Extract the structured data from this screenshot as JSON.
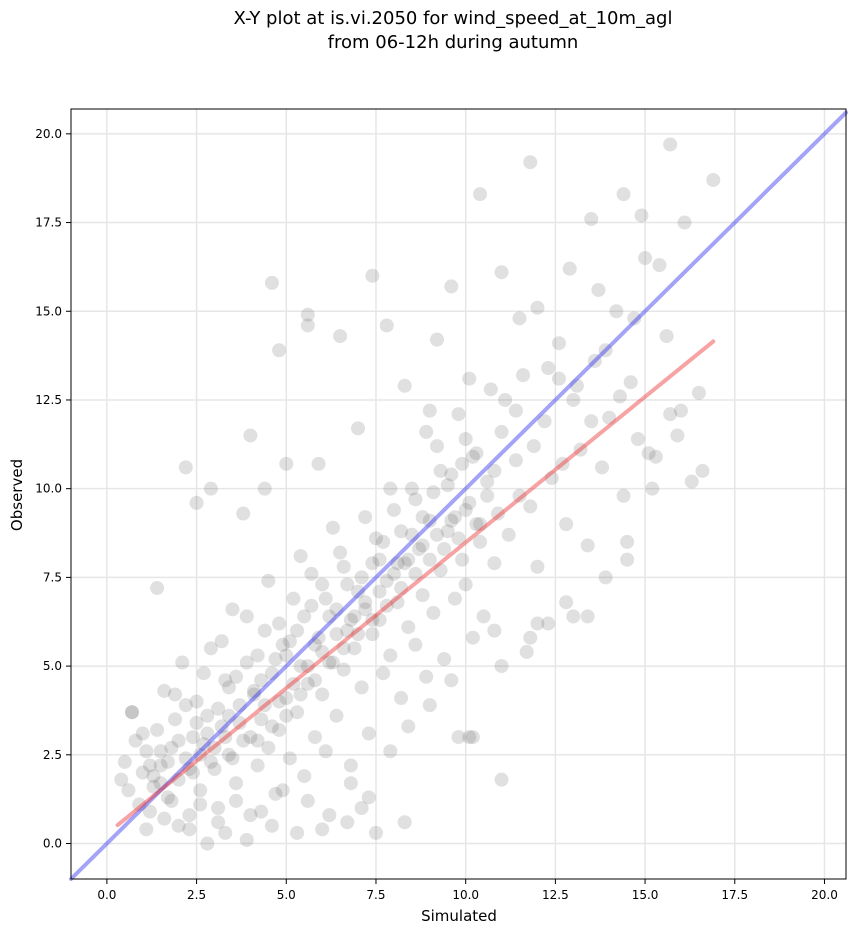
{
  "chart_data": {
    "type": "scatter",
    "title_line1": "X-Y plot at is.vi.2050 for wind_speed_at_10m_agl",
    "title_line2": "from 06-12h during autumn",
    "xlabel": "Simulated",
    "ylabel": "Observed",
    "xlim": [
      -1.0,
      20.6
    ],
    "ylim": [
      -1.0,
      20.7
    ],
    "x_ticks": [
      0.0,
      2.5,
      5.0,
      7.5,
      10.0,
      12.5,
      15.0,
      17.5,
      20.0
    ],
    "x_tick_labels": [
      "0.0",
      "2.5",
      "5.0",
      "7.5",
      "10.0",
      "12.5",
      "15.0",
      "17.5",
      "20.0"
    ],
    "y_ticks": [
      0.0,
      2.5,
      5.0,
      7.5,
      10.0,
      12.5,
      15.0,
      17.5,
      20.0
    ],
    "y_tick_labels": [
      "0.0",
      "2.5",
      "5.0",
      "7.5",
      "10.0",
      "12.5",
      "15.0",
      "17.5",
      "20.0"
    ],
    "grid": true,
    "point_color": "#555555",
    "identity_line": {
      "x": [
        -1.0,
        20.6
      ],
      "y": [
        -1.0,
        20.6
      ],
      "color": "#3333ee"
    },
    "fit_line": {
      "x": [
        0.3,
        16.9
      ],
      "y": [
        0.52,
        14.15
      ],
      "color": "#ee3333"
    },
    "points": [
      [
        0.4,
        1.8
      ],
      [
        0.5,
        2.3
      ],
      [
        0.6,
        1.5
      ],
      [
        0.7,
        3.7
      ],
      [
        0.8,
        2.9
      ],
      [
        0.9,
        1.1
      ],
      [
        1.0,
        2.0
      ],
      [
        1.1,
        2.6
      ],
      [
        1.2,
        0.9
      ],
      [
        1.3,
        1.6
      ],
      [
        1.4,
        3.2
      ],
      [
        1.5,
        2.2
      ],
      [
        1.6,
        4.3
      ],
      [
        1.7,
        1.3
      ],
      [
        1.8,
        2.7
      ],
      [
        1.9,
        3.5
      ],
      [
        2.0,
        1.8
      ],
      [
        2.1,
        5.1
      ],
      [
        2.2,
        2.4
      ],
      [
        2.3,
        0.4
      ],
      [
        2.4,
        3.0
      ],
      [
        2.5,
        4.0
      ],
      [
        2.6,
        1.5
      ],
      [
        2.7,
        2.8
      ],
      [
        2.8,
        3.6
      ],
      [
        2.9,
        5.5
      ],
      [
        3.0,
        2.1
      ],
      [
        3.1,
        1.0
      ],
      [
        3.2,
        3.3
      ],
      [
        3.3,
        4.6
      ],
      [
        3.4,
        2.5
      ],
      [
        3.5,
        6.6
      ],
      [
        3.6,
        1.7
      ],
      [
        3.7,
        3.9
      ],
      [
        3.8,
        2.9
      ],
      [
        3.9,
        5.1
      ],
      [
        4.0,
        0.8
      ],
      [
        4.1,
        4.3
      ],
      [
        4.2,
        2.2
      ],
      [
        4.3,
        3.5
      ],
      [
        4.4,
        6.0
      ],
      [
        4.5,
        2.7
      ],
      [
        4.6,
        4.8
      ],
      [
        4.7,
        1.4
      ],
      [
        4.8,
        3.2
      ],
      [
        4.9,
        5.6
      ],
      [
        5.0,
        4.1
      ],
      [
        5.1,
        2.4
      ],
      [
        5.2,
        6.9
      ],
      [
        5.3,
        3.7
      ],
      [
        5.4,
        5.0
      ],
      [
        5.5,
        1.9
      ],
      [
        5.6,
        4.5
      ],
      [
        5.7,
        7.6
      ],
      [
        5.8,
        3.0
      ],
      [
        5.9,
        5.8
      ],
      [
        6.0,
        4.2
      ],
      [
        6.1,
        2.6
      ],
      [
        6.2,
        6.4
      ],
      [
        6.3,
        5.1
      ],
      [
        6.4,
        3.6
      ],
      [
        6.5,
        8.2
      ],
      [
        6.6,
        4.9
      ],
      [
        6.7,
        6.0
      ],
      [
        6.8,
        2.2
      ],
      [
        6.9,
        5.5
      ],
      [
        7.0,
        7.1
      ],
      [
        7.1,
        4.4
      ],
      [
        7.2,
        6.6
      ],
      [
        7.3,
        3.1
      ],
      [
        7.4,
        5.9
      ],
      [
        7.5,
        8.6
      ],
      [
        7.6,
        6.3
      ],
      [
        7.7,
        4.8
      ],
      [
        7.8,
        7.4
      ],
      [
        7.9,
        5.3
      ],
      [
        8.0,
        9.4
      ],
      [
        8.1,
        6.8
      ],
      [
        8.2,
        4.1
      ],
      [
        8.3,
        7.9
      ],
      [
        8.4,
        6.1
      ],
      [
        8.5,
        10.0
      ],
      [
        8.6,
        5.6
      ],
      [
        8.7,
        8.3
      ],
      [
        8.8,
        7.0
      ],
      [
        8.9,
        4.7
      ],
      [
        9.0,
        9.1
      ],
      [
        9.1,
        6.5
      ],
      [
        9.2,
        11.2
      ],
      [
        9.3,
        7.7
      ],
      [
        9.4,
        5.2
      ],
      [
        9.5,
        8.8
      ],
      [
        9.6,
        10.4
      ],
      [
        9.7,
        6.9
      ],
      [
        9.8,
        12.1
      ],
      [
        9.9,
        8.0
      ],
      [
        10.0,
        7.3
      ],
      [
        10.1,
        9.6
      ],
      [
        10.2,
        5.8
      ],
      [
        10.3,
        11.0
      ],
      [
        10.4,
        8.5
      ],
      [
        10.5,
        6.4
      ],
      [
        10.6,
        10.2
      ],
      [
        10.7,
        12.8
      ],
      [
        10.8,
        7.9
      ],
      [
        10.9,
        9.3
      ],
      [
        11.0,
        11.6
      ],
      [
        11.2,
        8.7
      ],
      [
        11.4,
        10.8
      ],
      [
        11.6,
        13.2
      ],
      [
        11.8,
        9.5
      ],
      [
        12.0,
        7.8
      ],
      [
        12.2,
        11.9
      ],
      [
        12.4,
        10.3
      ],
      [
        12.6,
        14.1
      ],
      [
        12.8,
        9.0
      ],
      [
        13.0,
        12.5
      ],
      [
        13.2,
        11.1
      ],
      [
        13.4,
        8.4
      ],
      [
        13.6,
        13.6
      ],
      [
        13.8,
        10.6
      ],
      [
        14.0,
        12.0
      ],
      [
        14.2,
        15.0
      ],
      [
        14.4,
        9.8
      ],
      [
        14.6,
        13.0
      ],
      [
        14.8,
        11.4
      ],
      [
        15.0,
        16.5
      ],
      [
        15.3,
        10.9
      ],
      [
        15.6,
        14.3
      ],
      [
        16.0,
        12.2
      ],
      [
        1.1,
        0.4
      ],
      [
        1.6,
        0.7
      ],
      [
        2.0,
        0.5
      ],
      [
        2.6,
        1.1
      ],
      [
        3.1,
        0.6
      ],
      [
        3.6,
        1.2
      ],
      [
        4.3,
        0.9
      ],
      [
        4.9,
        1.5
      ],
      [
        5.6,
        1.2
      ],
      [
        6.2,
        0.8
      ],
      [
        6.8,
        1.7
      ],
      [
        7.3,
        1.3
      ],
      [
        7.9,
        2.6
      ],
      [
        8.4,
        3.3
      ],
      [
        9.0,
        3.9
      ],
      [
        9.6,
        4.6
      ],
      [
        10.2,
        3.0
      ],
      [
        11.0,
        5.0
      ],
      [
        11.7,
        5.4
      ],
      [
        12.3,
        6.2
      ],
      [
        12.8,
        6.8
      ],
      [
        13.4,
        6.4
      ],
      [
        13.9,
        7.5
      ],
      [
        14.5,
        8.5
      ],
      [
        15.2,
        10.0
      ],
      [
        15.9,
        11.5
      ],
      [
        16.5,
        12.7
      ],
      [
        16.9,
        18.7
      ],
      [
        15.7,
        19.7
      ],
      [
        11.8,
        19.2
      ],
      [
        10.4,
        18.3
      ],
      [
        14.4,
        18.3
      ],
      [
        14.9,
        17.7
      ],
      [
        16.1,
        17.5
      ],
      [
        13.5,
        17.6
      ],
      [
        15.4,
        16.3
      ],
      [
        12.9,
        16.2
      ],
      [
        11.0,
        16.1
      ],
      [
        9.6,
        15.7
      ],
      [
        7.4,
        16.0
      ],
      [
        4.6,
        15.8
      ],
      [
        5.6,
        14.9
      ],
      [
        5.6,
        14.6
      ],
      [
        7.8,
        14.6
      ],
      [
        9.2,
        14.2
      ],
      [
        12.0,
        15.1
      ],
      [
        11.5,
        14.8
      ],
      [
        13.7,
        15.6
      ],
      [
        2.2,
        10.6
      ],
      [
        1.4,
        7.2
      ],
      [
        2.5,
        9.6
      ],
      [
        2.9,
        10.0
      ],
      [
        3.8,
        9.3
      ],
      [
        4.0,
        11.5
      ],
      [
        4.4,
        10.0
      ],
      [
        5.0,
        10.7
      ],
      [
        5.9,
        10.7
      ],
      [
        7.0,
        11.7
      ],
      [
        4.8,
        13.9
      ],
      [
        6.5,
        14.3
      ],
      [
        8.3,
        12.9
      ],
      [
        9.0,
        12.2
      ],
      [
        11.4,
        12.2
      ],
      [
        10.1,
        13.1
      ],
      [
        12.6,
        13.1
      ],
      [
        15.1,
        11.0
      ],
      [
        16.3,
        10.2
      ],
      [
        15.7,
        12.1
      ],
      [
        16.6,
        10.5
      ],
      [
        14.5,
        8.0
      ],
      [
        13.0,
        6.4
      ],
      [
        12.0,
        6.2
      ],
      [
        11.8,
        5.8
      ],
      [
        10.8,
        6.0
      ],
      [
        10.1,
        3.0
      ],
      [
        11.0,
        1.8
      ],
      [
        9.8,
        3.0
      ],
      [
        8.3,
        0.6
      ],
      [
        7.5,
        0.3
      ],
      [
        7.1,
        1.0
      ],
      [
        6.7,
        0.6
      ],
      [
        6.0,
        0.4
      ],
      [
        5.3,
        0.3
      ],
      [
        4.6,
        0.5
      ],
      [
        3.9,
        0.1
      ],
      [
        3.3,
        0.3
      ],
      [
        2.8,
        0.0
      ],
      [
        2.3,
        0.8
      ],
      [
        1.8,
        1.2
      ],
      [
        1.3,
        1.9
      ],
      [
        0.7,
        3.7
      ],
      [
        1.0,
        3.1
      ],
      [
        1.5,
        2.6
      ],
      [
        1.9,
        4.2
      ],
      [
        2.2,
        3.9
      ],
      [
        2.7,
        4.8
      ],
      [
        3.2,
        5.7
      ],
      [
        3.4,
        4.4
      ],
      [
        3.9,
        6.4
      ],
      [
        4.2,
        5.3
      ],
      [
        4.5,
        7.4
      ],
      [
        4.8,
        6.2
      ],
      [
        5.1,
        5.7
      ],
      [
        5.4,
        8.1
      ],
      [
        5.7,
        6.7
      ],
      [
        6.0,
        7.3
      ],
      [
        6.3,
        8.9
      ],
      [
        6.6,
        7.8
      ],
      [
        6.9,
        6.4
      ],
      [
        7.2,
        9.2
      ],
      [
        7.6,
        8.0
      ],
      [
        7.9,
        10.0
      ],
      [
        8.2,
        8.8
      ],
      [
        8.6,
        9.7
      ],
      [
        8.9,
        11.6
      ],
      [
        9.3,
        10.5
      ],
      [
        9.7,
        9.2
      ],
      [
        10.0,
        11.4
      ],
      [
        10.4,
        9.0
      ],
      [
        10.8,
        10.5
      ],
      [
        11.1,
        12.5
      ],
      [
        11.5,
        9.8
      ],
      [
        11.9,
        11.2
      ],
      [
        12.3,
        13.4
      ],
      [
        12.7,
        10.7
      ],
      [
        13.1,
        12.9
      ],
      [
        13.5,
        11.9
      ],
      [
        13.9,
        13.9
      ],
      [
        14.3,
        12.6
      ],
      [
        14.7,
        14.8
      ],
      [
        2.4,
        2.0
      ],
      [
        2.6,
        2.5
      ],
      [
        2.8,
        3.1
      ],
      [
        3.0,
        2.7
      ],
      [
        3.3,
        3.0
      ],
      [
        3.5,
        2.4
      ],
      [
        3.7,
        3.4
      ],
      [
        4.0,
        3.0
      ],
      [
        4.2,
        2.9
      ],
      [
        4.4,
        3.9
      ],
      [
        4.6,
        3.3
      ],
      [
        4.8,
        4.0
      ],
      [
        5.0,
        3.6
      ],
      [
        5.2,
        4.5
      ],
      [
        5.4,
        4.2
      ],
      [
        5.6,
        5.0
      ],
      [
        5.8,
        4.6
      ],
      [
        6.0,
        5.4
      ],
      [
        6.2,
        5.1
      ],
      [
        6.4,
        5.9
      ],
      [
        6.6,
        5.5
      ],
      [
        6.8,
        6.3
      ],
      [
        7.0,
        5.9
      ],
      [
        7.2,
        6.8
      ],
      [
        7.4,
        6.3
      ],
      [
        7.6,
        7.1
      ],
      [
        7.8,
        6.7
      ],
      [
        8.0,
        7.6
      ],
      [
        8.2,
        7.2
      ],
      [
        8.4,
        8.0
      ],
      [
        8.6,
        7.6
      ],
      [
        8.8,
        8.4
      ],
      [
        9.0,
        8.0
      ],
      [
        9.2,
        8.7
      ],
      [
        9.4,
        8.3
      ],
      [
        9.6,
        9.1
      ],
      [
        9.8,
        8.6
      ],
      [
        10.0,
        9.4
      ],
      [
        10.3,
        9.0
      ],
      [
        10.6,
        9.8
      ],
      [
        1.2,
        2.2
      ],
      [
        1.5,
        1.7
      ],
      [
        1.7,
        2.3
      ],
      [
        2.0,
        2.9
      ],
      [
        2.3,
        2.1
      ],
      [
        2.5,
        3.4
      ],
      [
        2.9,
        2.3
      ],
      [
        3.1,
        3.8
      ],
      [
        3.4,
        3.6
      ],
      [
        3.6,
        4.7
      ],
      [
        4.1,
        4.2
      ],
      [
        4.3,
        4.6
      ],
      [
        4.7,
        5.2
      ],
      [
        5.0,
        5.3
      ],
      [
        5.3,
        6.0
      ],
      [
        5.5,
        6.4
      ],
      [
        5.8,
        5.6
      ],
      [
        6.1,
        6.9
      ],
      [
        6.4,
        6.6
      ],
      [
        6.7,
        7.3
      ],
      [
        7.1,
        7.5
      ],
      [
        7.4,
        7.9
      ],
      [
        7.7,
        8.5
      ],
      [
        8.1,
        7.9
      ],
      [
        8.5,
        8.7
      ],
      [
        8.8,
        9.2
      ],
      [
        9.1,
        9.9
      ],
      [
        9.5,
        10.1
      ],
      [
        9.9,
        10.7
      ],
      [
        10.2,
        10.9
      ]
    ]
  }
}
